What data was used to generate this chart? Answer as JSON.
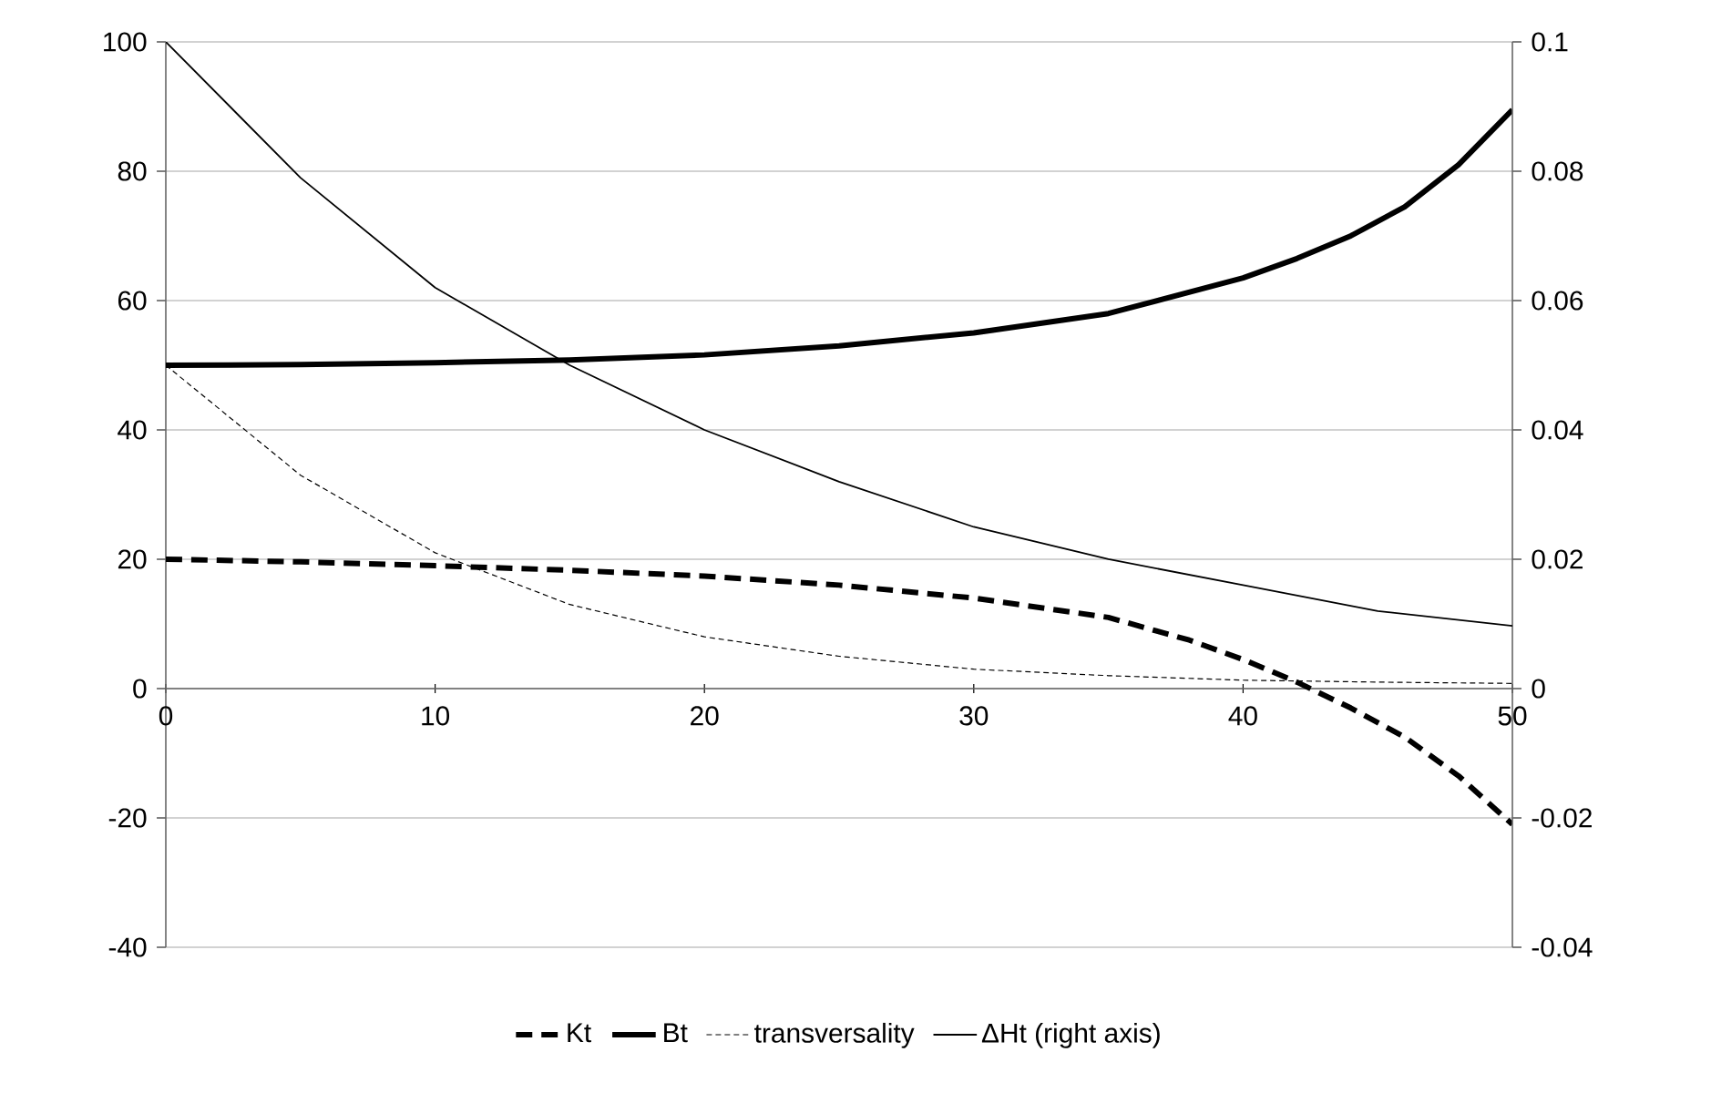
{
  "chart_data": {
    "type": "line",
    "x": [
      0,
      5,
      10,
      15,
      20,
      25,
      30,
      35,
      40,
      45,
      50
    ],
    "series": [
      {
        "name": "Kt",
        "color": "#000000",
        "line_style": "dashed",
        "x": [
          0,
          5,
          10,
          15,
          20,
          25,
          30,
          35,
          38,
          40,
          42,
          44,
          46,
          48,
          50
        ],
        "values": [
          20,
          19.6,
          19,
          18.3,
          17.4,
          16,
          14,
          11,
          7.5,
          4.5,
          1,
          -3,
          -7.5,
          -13.5,
          -21
        ]
      },
      {
        "name": "Bt",
        "color": "#000000",
        "line_style": "solid",
        "x": [
          0,
          5,
          10,
          15,
          20,
          25,
          30,
          35,
          40,
          42,
          44,
          46,
          48,
          50
        ],
        "values": [
          50,
          50.1,
          50.4,
          50.8,
          51.6,
          53,
          55,
          58,
          63.5,
          66.5,
          70,
          74.5,
          81,
          89.5
        ]
      },
      {
        "name": "transversality",
        "color": "#000000",
        "line_style": "dashed",
        "values": [
          50,
          33,
          21,
          13,
          8,
          5,
          3,
          2,
          1.3,
          1,
          0.8
        ]
      },
      {
        "name": "ΔHt (right axis)",
        "color": "#000000",
        "line_style": "solid",
        "axis": "y2",
        "values": [
          0.1,
          0.079,
          0.062,
          0.05,
          0.04,
          0.032,
          0.025,
          0.02,
          0.016,
          0.012,
          0.0097
        ]
      }
    ],
    "xlim": [
      0,
      50
    ],
    "xticks": [
      0,
      10,
      20,
      30,
      40,
      50
    ],
    "ylim": [
      -40,
      100
    ],
    "yticks": [
      -40,
      -20,
      0,
      20,
      40,
      60,
      80,
      100
    ],
    "y2lim": [
      -0.04,
      0.1
    ],
    "y2ticks": [
      -0.04,
      -0.02,
      0,
      0.02,
      0.04,
      0.06,
      0.08,
      0.1
    ],
    "grid": "y",
    "legend": "bottom"
  }
}
